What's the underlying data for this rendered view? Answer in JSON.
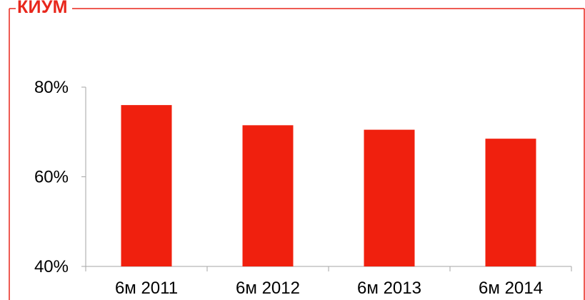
{
  "chart_data": {
    "type": "bar",
    "title": "КИУМ",
    "categories": [
      "6м 2011",
      "6м 2012",
      "6м 2013",
      "6м 2014"
    ],
    "values": [
      76,
      71.5,
      70.5,
      68.5
    ],
    "y_tick_labels": [
      "80%",
      "60%",
      "40%"
    ],
    "y_ticks": [
      80,
      60,
      40
    ],
    "ylim": [
      40,
      80
    ],
    "xlabel": "",
    "ylabel": "",
    "grid": false,
    "colors": {
      "bar": "#f0200e",
      "frame": "#e8271c",
      "axis": "#a6a6a6",
      "text": "#000000"
    }
  }
}
